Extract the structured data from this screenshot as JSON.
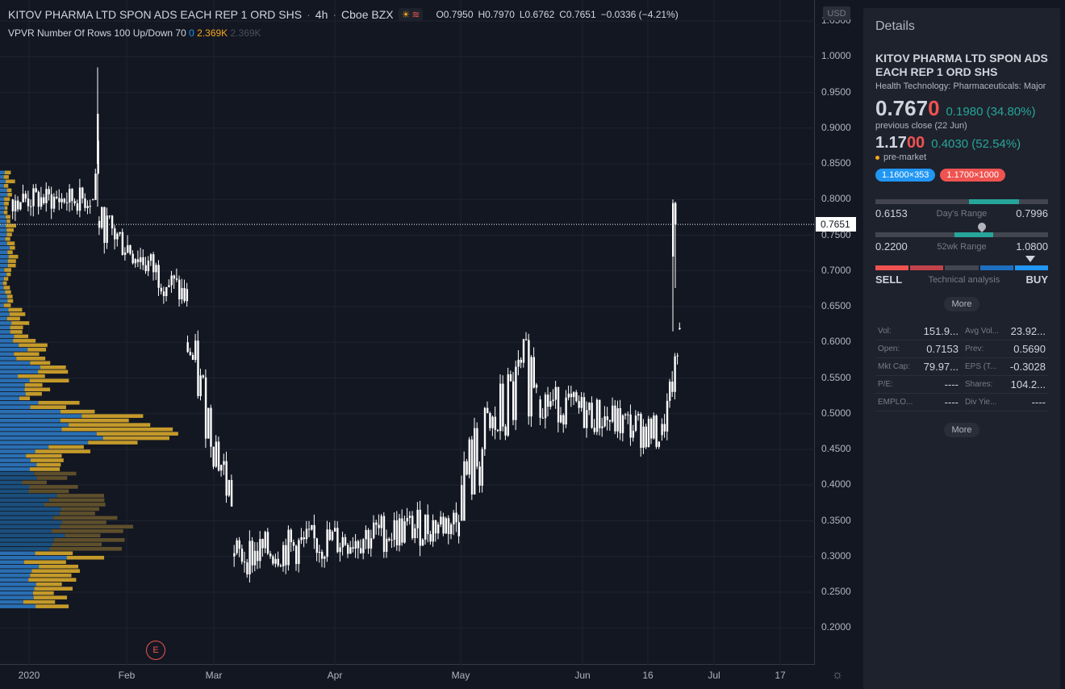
{
  "header": {
    "symbol": "KITOV PHARMA LTD SPON ADS EACH REP 1 ORD SHS",
    "interval": "4h",
    "exchange": "Cboe BZX",
    "open": "O0.7950",
    "high": "H0.7970",
    "low": "L0.6762",
    "close": "C0.7651",
    "change": "−0.0336 (−4.21%)"
  },
  "indicator": {
    "name": "VPVR Number Of Rows 100 Up/Down 70",
    "v1": "0",
    "v2": "2.369K",
    "v3": "2.369K"
  },
  "axis": {
    "currency": "USD",
    "price_ticks": [
      "1.0500",
      "1.0000",
      "0.9500",
      "0.9000",
      "0.8500",
      "0.8000",
      "0.7500",
      "0.7000",
      "0.6500",
      "0.6000",
      "0.5500",
      "0.5000",
      "0.4500",
      "0.4000",
      "0.3500",
      "0.3000",
      "0.2500",
      "0.2000"
    ],
    "current_price": "0.7651",
    "time_ticks": [
      "2020",
      "Feb",
      "Mar",
      "Apr",
      "May",
      "Jun",
      "16",
      "Jul",
      "17"
    ],
    "earnings_marker": "E"
  },
  "chart_data": {
    "type": "candlestick",
    "ylim": [
      0.17,
      1.06
    ],
    "current_price": 0.7651,
    "candles_note": "approximate 4h candles Dec 2019 – Jun 2020",
    "segments": [
      {
        "from": "2019-12-30",
        "to": "2020-01-20",
        "range": [
          0.74,
          0.84
        ]
      },
      {
        "from": "2020-01-21",
        "to": "2020-01-22",
        "range": [
          0.79,
          0.985
        ]
      },
      {
        "from": "2020-01-23",
        "to": "2020-02-20",
        "range": [
          0.65,
          0.79
        ]
      },
      {
        "from": "2020-02-21",
        "to": "2020-03-05",
        "range": [
          0.37,
          0.62
        ]
      },
      {
        "from": "2020-03-06",
        "to": "2020-04-30",
        "range": [
          0.23,
          0.39
        ]
      },
      {
        "from": "2020-05-01",
        "to": "2020-05-20",
        "range": [
          0.35,
          0.7
        ]
      },
      {
        "from": "2020-05-21",
        "to": "2020-06-18",
        "range": [
          0.42,
          0.57
        ]
      },
      {
        "from": "2020-06-19",
        "to": "2020-06-22",
        "range": [
          0.46,
          0.585
        ]
      },
      {
        "from": "2020-06-23",
        "to": "2020-06-23",
        "range": [
          0.6153,
          0.7996
        ]
      }
    ],
    "volume_profile": {
      "up_color": "#2196f3",
      "down_color": "#c49a2a",
      "price_range": [
        0.23,
        0.84
      ]
    }
  },
  "details": {
    "title": "Details",
    "name": "KITOV PHARMA LTD SPON ADS EACH REP 1 ORD SHS",
    "sector": "Health Technology: Pharmaceuticals: Major",
    "price_main": "0.767",
    "price_last": "0",
    "change": "0.1980 (34.80%)",
    "prev_close": "previous close (22 Jun)",
    "pre_main": "1.17",
    "pre_last": "00",
    "pre_change": "0.4030 (52.54%)",
    "pre_label": "pre-market",
    "bid": "1.1600×353",
    "ask": "1.1700×1000",
    "day_low": "0.6153",
    "day_label": "Day's Range",
    "day_high": "0.7996",
    "wk_low": "0.2200",
    "wk_label": "52wk Range",
    "wk_high": "1.0800",
    "sell": "SELL",
    "ta_label": "Technical analysis",
    "buy": "BUY",
    "more": "More",
    "more2": "More",
    "stats": [
      {
        "k": "Vol:",
        "v": "151.9..."
      },
      {
        "k": "Avg Vol...",
        "v": "23.92..."
      },
      {
        "k": "Open:",
        "v": "0.7153"
      },
      {
        "k": "Prev:",
        "v": "0.5690"
      },
      {
        "k": "Mkt Cap:",
        "v": "79.97..."
      },
      {
        "k": "EPS (T...",
        "v": "-0.3028"
      },
      {
        "k": "P/E:",
        "v": "----"
      },
      {
        "k": "Shares:",
        "v": "104.2..."
      },
      {
        "k": "EMPLO...",
        "v": "----"
      },
      {
        "k": "Div Yie...",
        "v": "----"
      }
    ]
  }
}
